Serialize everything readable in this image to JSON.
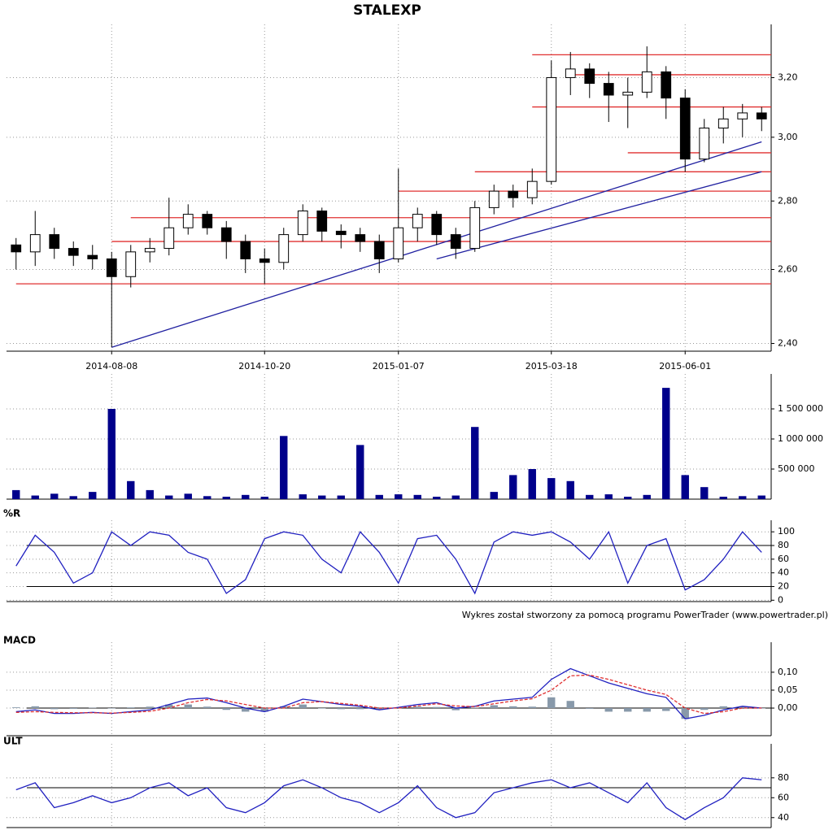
{
  "footer": "Wykres został stworzony za pomocą programu PowerTrader (www.powertrader.pl)",
  "chart_data": [
    {
      "type": "candlestick",
      "title": "STALEXP",
      "log_scale": true,
      "grid": true,
      "categories": [
        null,
        null,
        null,
        null,
        null,
        "2014-08-08",
        null,
        null,
        null,
        null,
        null,
        null,
        null,
        "2014-10-20",
        null,
        null,
        null,
        null,
        null,
        null,
        "2015-01-07",
        null,
        null,
        null,
        null,
        null,
        null,
        null,
        "2015-03-18",
        null,
        null,
        null,
        null,
        null,
        null,
        "2015-06-01",
        null,
        null,
        null,
        null
      ],
      "open": [
        2.67,
        2.65,
        2.7,
        2.66,
        2.64,
        2.63,
        2.58,
        2.65,
        2.66,
        2.72,
        2.76,
        2.72,
        2.68,
        2.63,
        2.62,
        2.7,
        2.77,
        2.71,
        2.7,
        2.68,
        2.63,
        2.72,
        2.76,
        2.7,
        2.66,
        2.78,
        2.83,
        2.81,
        2.86,
        3.2,
        3.23,
        3.18,
        3.14,
        3.15,
        3.22,
        3.13,
        2.93,
        3.03,
        3.06,
        3.08
      ],
      "high": [
        2.69,
        2.77,
        2.72,
        2.68,
        2.67,
        2.65,
        2.67,
        2.69,
        2.81,
        2.79,
        2.77,
        2.74,
        2.7,
        2.66,
        2.72,
        2.79,
        2.78,
        2.73,
        2.72,
        2.7,
        2.9,
        2.78,
        2.77,
        2.72,
        2.8,
        2.85,
        2.85,
        2.9,
        3.26,
        3.29,
        3.25,
        3.22,
        3.2,
        3.31,
        3.24,
        3.16,
        3.06,
        3.1,
        3.11,
        3.1
      ],
      "low": [
        2.6,
        2.61,
        2.63,
        2.61,
        2.6,
        2.39,
        2.55,
        2.62,
        2.64,
        2.7,
        2.7,
        2.63,
        2.59,
        2.56,
        2.6,
        2.68,
        2.68,
        2.66,
        2.65,
        2.59,
        2.62,
        2.68,
        2.67,
        2.63,
        2.65,
        2.76,
        2.78,
        2.79,
        2.85,
        3.14,
        3.13,
        3.05,
        3.03,
        3.13,
        3.06,
        2.89,
        2.92,
        2.98,
        3.0,
        3.02
      ],
      "close": [
        2.65,
        2.7,
        2.66,
        2.64,
        2.63,
        2.58,
        2.65,
        2.66,
        2.72,
        2.76,
        2.72,
        2.68,
        2.63,
        2.62,
        2.7,
        2.77,
        2.71,
        2.7,
        2.68,
        2.63,
        2.72,
        2.76,
        2.7,
        2.66,
        2.78,
        2.83,
        2.81,
        2.86,
        3.2,
        3.23,
        3.18,
        3.14,
        3.15,
        3.22,
        3.13,
        2.93,
        3.03,
        3.06,
        3.08,
        3.06
      ],
      "ylim": [
        2.38,
        3.36
      ],
      "yticks": [
        {
          "value": 2.4,
          "label": "2,40"
        },
        {
          "value": 2.6,
          "label": "2,60"
        },
        {
          "value": 2.8,
          "label": "2,80"
        },
        {
          "value": 3.0,
          "label": "3,00"
        },
        {
          "value": 3.2,
          "label": "3,20"
        }
      ],
      "levels": [
        {
          "value": 3.28,
          "from": 27
        },
        {
          "value": 3.21,
          "from": 29
        },
        {
          "value": 3.1,
          "from": 27
        },
        {
          "value": 2.95,
          "from": 32
        },
        {
          "value": 2.89,
          "from": 24
        },
        {
          "value": 2.83,
          "from": 20
        },
        {
          "value": 2.75,
          "from": 6
        },
        {
          "value": 2.68,
          "from": 5
        },
        {
          "value": 2.56,
          "from": 0
        }
      ],
      "level_color": "#e03030",
      "trendlines": [
        {
          "x": [
            5,
            39
          ],
          "y": [
            2.39,
            2.985
          ]
        },
        {
          "x": [
            22,
            39
          ],
          "y": [
            2.63,
            2.89
          ]
        }
      ],
      "trend_color": "#2020a0"
    },
    {
      "type": "bar",
      "color": "#00008b",
      "ylim": [
        0,
        1946000
      ],
      "values": [
        150000,
        60000,
        90000,
        50000,
        120000,
        1500000,
        300000,
        150000,
        60000,
        90000,
        50000,
        40000,
        70000,
        40000,
        1050000,
        80000,
        60000,
        60000,
        900000,
        70000,
        80000,
        70000,
        40000,
        60000,
        1200000,
        120000,
        400000,
        500000,
        350000,
        300000,
        70000,
        80000,
        40000,
        70000,
        1850000,
        400000,
        200000,
        40000,
        50000,
        60000
      ],
      "yticks": [
        {
          "value": 500000,
          "label": "500 000"
        },
        {
          "value": 1000000,
          "label": "1 000 000"
        },
        {
          "value": 1500000,
          "label": "1 500 000"
        }
      ]
    },
    {
      "type": "line",
      "title": "%R",
      "ylim": [
        -2,
        105
      ],
      "yticks": [
        0,
        20,
        40,
        60,
        80,
        100
      ],
      "hlines": [
        20,
        80
      ],
      "series": [
        {
          "color": "#2020c0",
          "style": "solid",
          "values": [
            50,
            95,
            70,
            25,
            40,
            100,
            80,
            100,
            95,
            70,
            60,
            10,
            30,
            90,
            100,
            95,
            60,
            40,
            100,
            70,
            25,
            90,
            95,
            60,
            10,
            85,
            100,
            95,
            100,
            85,
            60,
            100,
            25,
            80,
            90,
            15,
            30,
            60,
            100,
            70
          ]
        }
      ]
    },
    {
      "type": "line",
      "title": "MACD",
      "ylim": [
        -0.077,
        0.161
      ],
      "yticks": [
        {
          "value": 0,
          "label": "0,00"
        },
        {
          "value": 0.05,
          "label": "0,05"
        },
        {
          "value": 0.1,
          "label": "0,10"
        }
      ],
      "hlines": [
        0
      ],
      "series": [
        {
          "color": "#8899aa",
          "style": "bars",
          "values": [
            0.002,
            0.005,
            -0.003,
            -0.002,
            0.001,
            -0.001,
            0.002,
            0.004,
            0.01,
            0.01,
            0.004,
            -0.005,
            -0.01,
            -0.01,
            0.005,
            0.01,
            0,
            -0.003,
            -0.003,
            -0.005,
            0.002,
            0.004,
            0.003,
            -0.006,
            0.001,
            0.008,
            0.005,
            0.004,
            0.03,
            0.02,
            -0.002,
            -0.01,
            -0.01,
            -0.01,
            -0.008,
            -0.03,
            -0.005,
            0.005,
            0.005,
            0
          ]
        },
        {
          "color": "#2020c0",
          "style": "solid",
          "values": [
            -0.01,
            -0.005,
            -0.015,
            -0.015,
            -0.012,
            -0.015,
            -0.01,
            -0.005,
            0.01,
            0.025,
            0.028,
            0.015,
            0.0,
            -0.01,
            0.005,
            0.025,
            0.018,
            0.01,
            0.005,
            -0.005,
            0.002,
            0.01,
            0.015,
            0.0,
            0.005,
            0.02,
            0.025,
            0.03,
            0.08,
            0.11,
            0.09,
            0.07,
            0.055,
            0.04,
            0.03,
            -0.03,
            -0.02,
            -0.005,
            0.005,
            0.0
          ]
        },
        {
          "color": "#e03030",
          "style": "dashed",
          "values": [
            -0.012,
            -0.01,
            -0.012,
            -0.013,
            -0.013,
            -0.014,
            -0.012,
            -0.009,
            0.0,
            0.015,
            0.024,
            0.02,
            0.01,
            0.0,
            0.0,
            0.015,
            0.018,
            0.013,
            0.008,
            0.0,
            0.0,
            0.006,
            0.012,
            0.006,
            0.004,
            0.012,
            0.02,
            0.026,
            0.05,
            0.09,
            0.092,
            0.08,
            0.065,
            0.05,
            0.038,
            0.0,
            -0.015,
            -0.01,
            0.0,
            0.0
          ]
        }
      ]
    },
    {
      "type": "line",
      "title": "ULT",
      "ylim": [
        30,
        106
      ],
      "yticks": [
        40,
        60,
        80
      ],
      "hlines": [
        70
      ],
      "series": [
        {
          "color": "#2020c0",
          "style": "solid",
          "values": [
            68,
            75,
            50,
            55,
            62,
            55,
            60,
            70,
            75,
            62,
            70,
            50,
            45,
            55,
            72,
            78,
            70,
            60,
            55,
            45,
            55,
            72,
            50,
            40,
            45,
            65,
            70,
            75,
            78,
            70,
            75,
            65,
            55,
            75,
            50,
            38,
            50,
            60,
            80,
            78
          ]
        }
      ]
    }
  ]
}
